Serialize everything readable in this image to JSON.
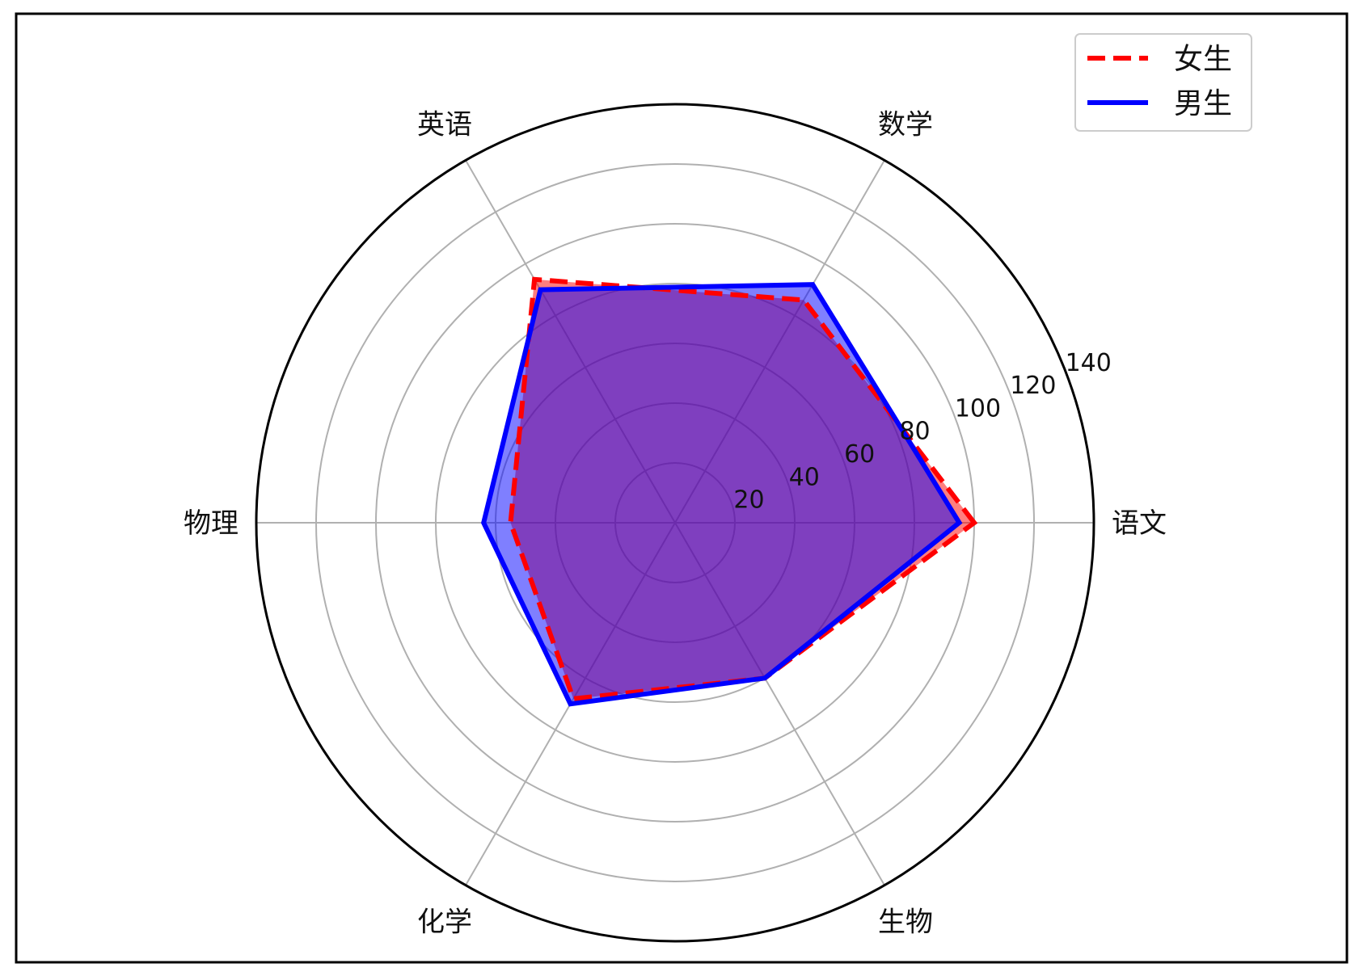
{
  "chart_data": {
    "type": "radar",
    "title": "",
    "categories": [
      "语文",
      "数学",
      "英语",
      "物理",
      "化学",
      "生物"
    ],
    "rlim": [
      0,
      140
    ],
    "r_ticks": [
      20,
      40,
      60,
      80,
      100,
      120,
      140
    ],
    "r_tick_labels": [
      "20",
      "40",
      "60",
      "80",
      "100",
      "120",
      "140"
    ],
    "grid": true,
    "legend_position": "top-right",
    "series": [
      {
        "name": "女生",
        "values": [
          100,
          86,
          94,
          55,
          68,
          60
        ],
        "color": "#ff0000",
        "line_style": "dashed",
        "fill_color": "#ff0000"
      },
      {
        "name": "男生",
        "values": [
          95,
          92,
          90,
          64,
          70,
          60
        ],
        "color": "#0000ff",
        "line_style": "solid",
        "fill_color": "#0000ff"
      }
    ]
  }
}
